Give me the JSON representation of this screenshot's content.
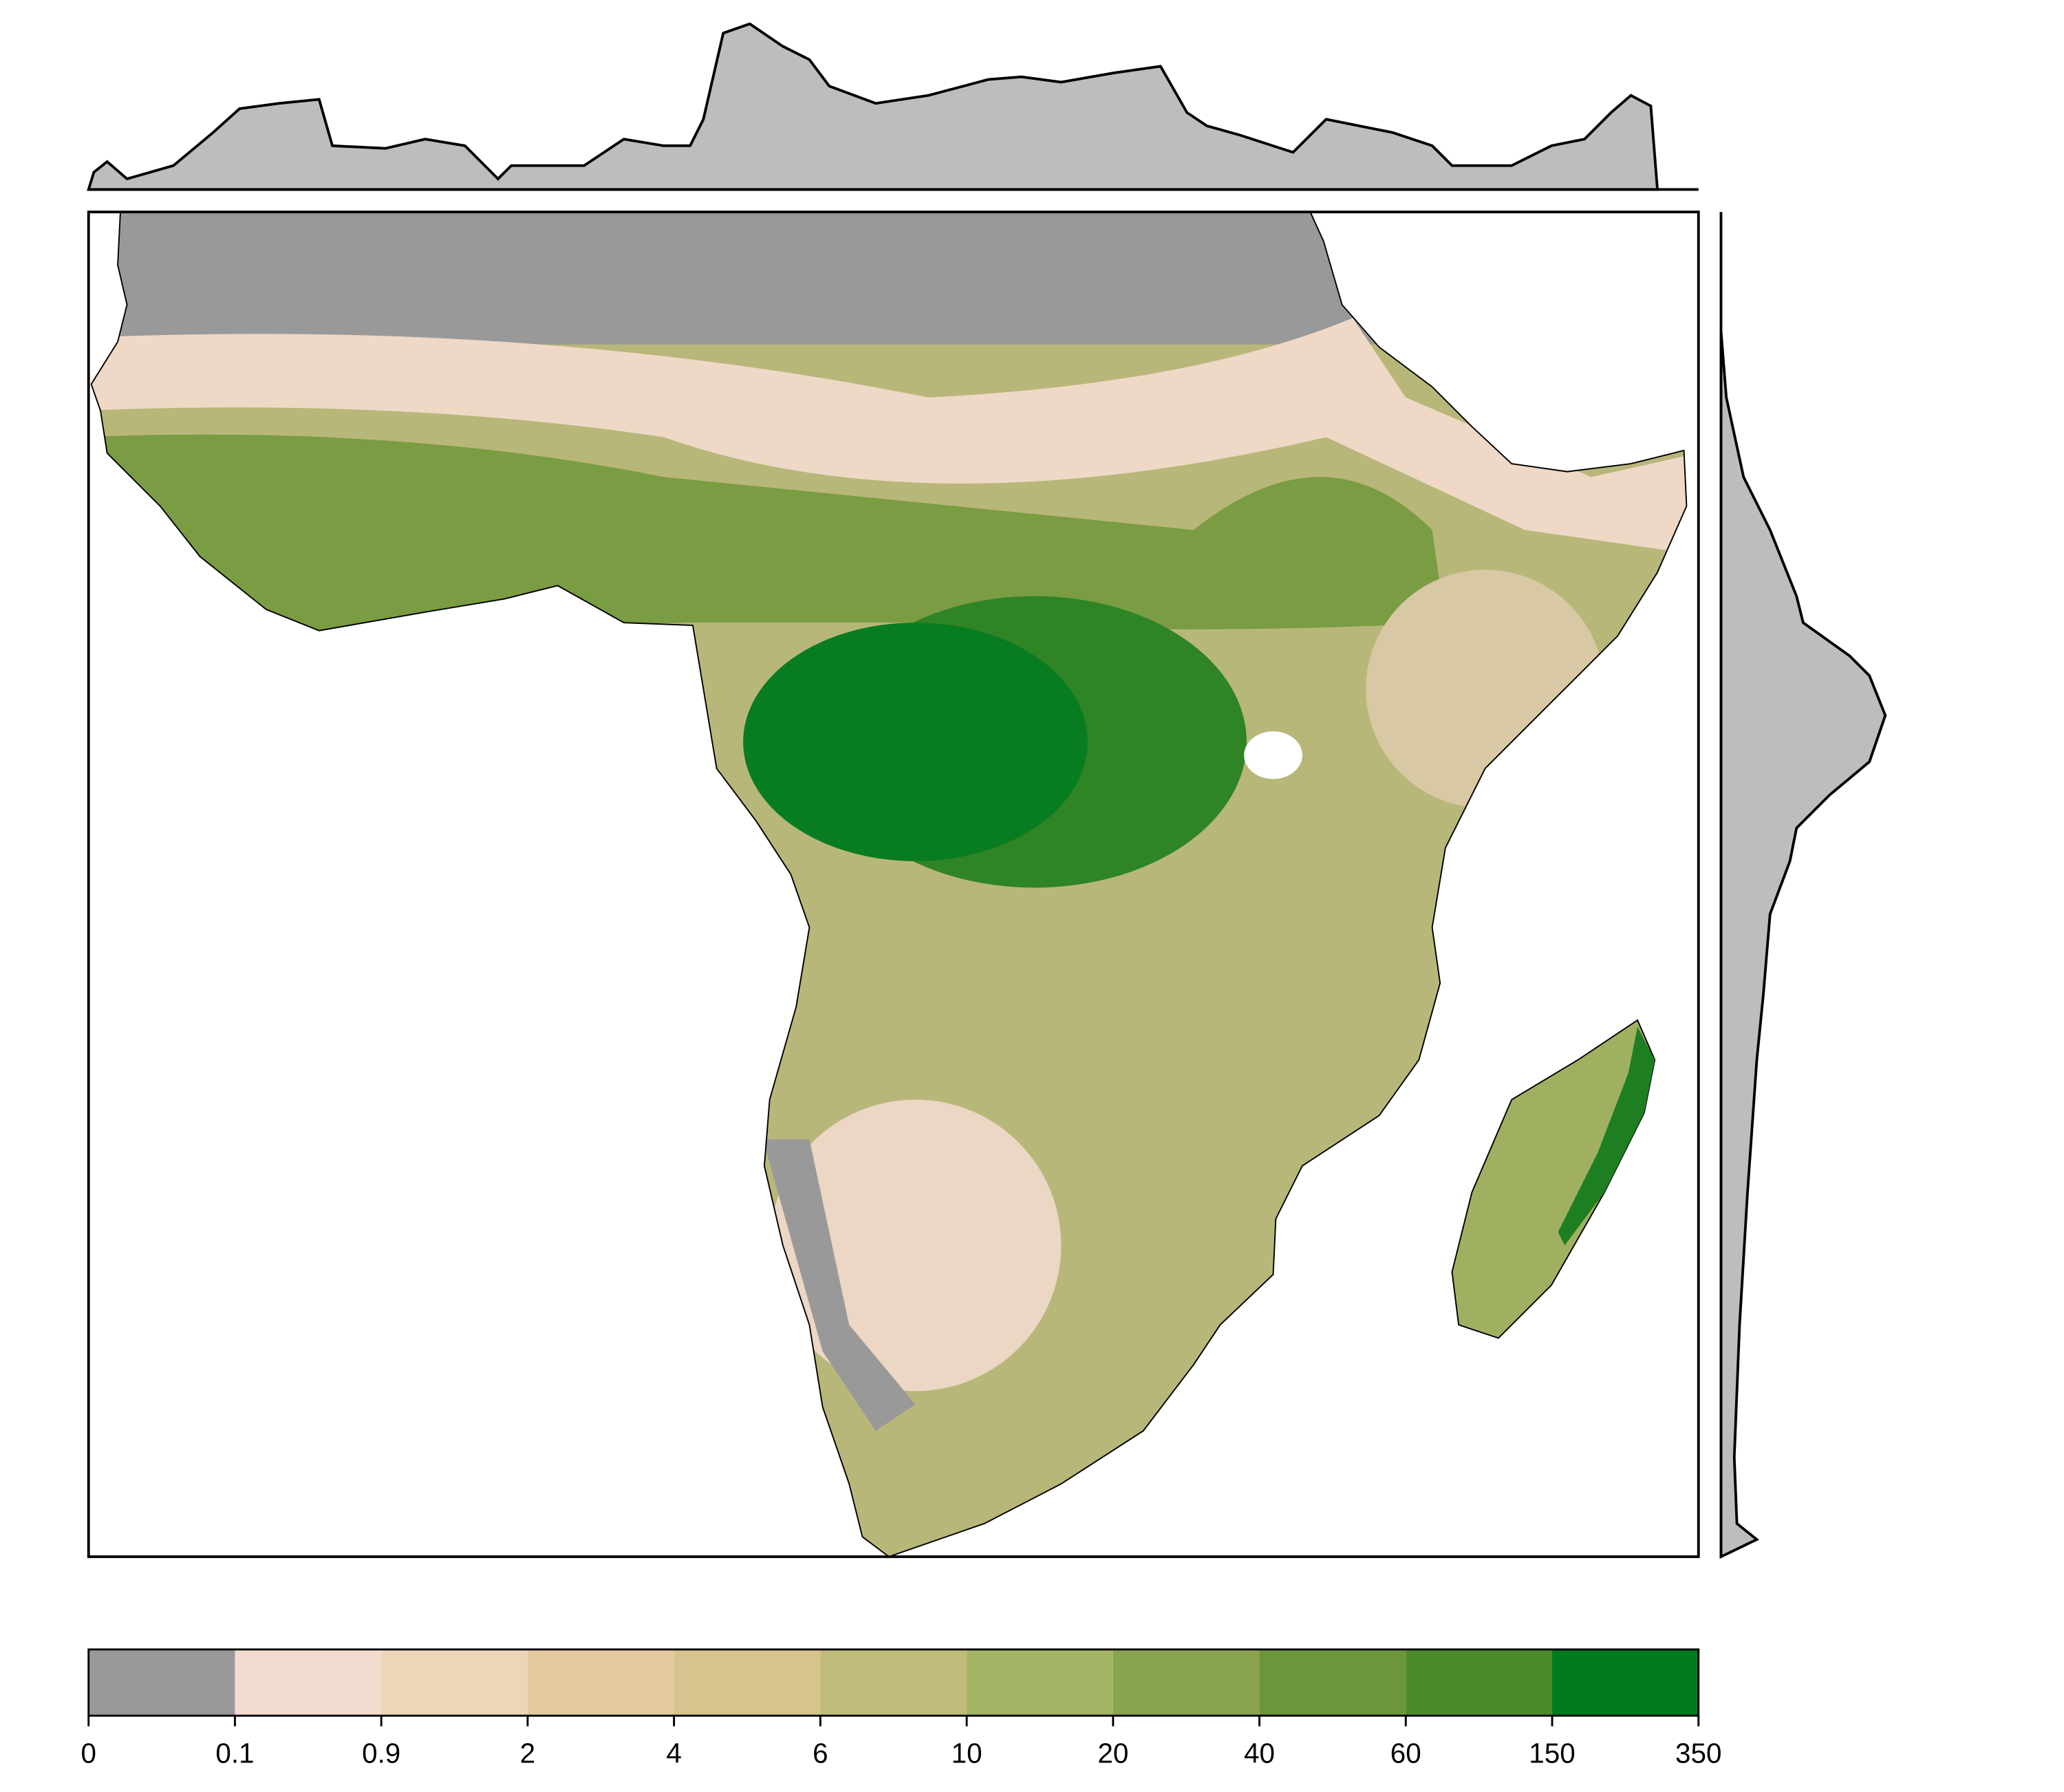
{
  "legend": {
    "breaks": [
      0,
      0.1,
      0.9,
      2,
      4,
      6,
      10,
      20,
      40,
      60,
      150,
      350
    ],
    "colors": [
      "#999999",
      "#f2dcd0",
      "#eed4b8",
      "#e3c9a0",
      "#d6c38d",
      "#bfbb7b",
      "#a4b466",
      "#8aa34f",
      "#6c963a",
      "#4b8a2b",
      "#007a1f"
    ]
  }
}
